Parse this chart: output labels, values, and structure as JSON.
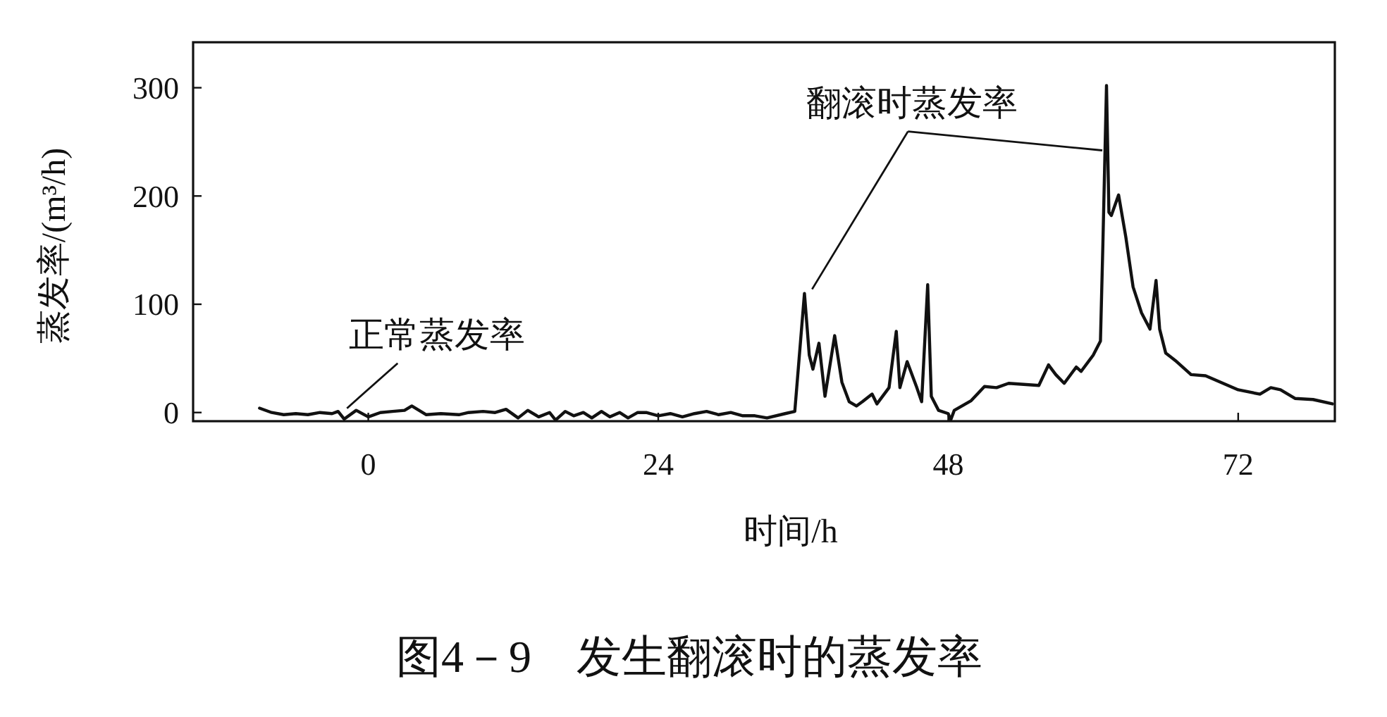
{
  "chart_data": {
    "type": "line",
    "title": "图4－9　发生翻滚时的蒸发率",
    "xlabel": "时间/h",
    "ylabel": "蒸发率/(m³/h)",
    "xlim": [
      -14.5,
      80
    ],
    "ylim": [
      -8,
      342
    ],
    "xticks": [
      0,
      24,
      48,
      72
    ],
    "yticks": [
      0,
      100,
      200,
      300
    ],
    "line_style": "solid",
    "series": [
      {
        "color": "#111111",
        "x": [
          -9,
          -8,
          -7,
          -6,
          -5,
          -4,
          -3,
          -2.5,
          -2,
          -1,
          0,
          1,
          2,
          3,
          3.6,
          4.8,
          6,
          7.5,
          8.3,
          9.5,
          10.5,
          11.4,
          12.4,
          13.2,
          14.1,
          15,
          15.5,
          16.3,
          17,
          17.8,
          18.5,
          19.3,
          20,
          20.8,
          21.5,
          22.3,
          23,
          24,
          25,
          26,
          27,
          28,
          29,
          30,
          31,
          32,
          33,
          34.5,
          35.3,
          36.1,
          36.5,
          36.8,
          37.3,
          37.8,
          38.6,
          39.2,
          39.8,
          40.4,
          40.9,
          41.7,
          42.1,
          43.1,
          43.7,
          44,
          44.6,
          45.4,
          45.8,
          46.3,
          46.6,
          47.2,
          48,
          48.2,
          48.5,
          49.9,
          51,
          52,
          53,
          55.5,
          56.3,
          56.9,
          57.6,
          58.6,
          59,
          60,
          60.6,
          60.8,
          61.1,
          61.3,
          61.5,
          62.1,
          62.7,
          63.3,
          64,
          64.7,
          65.2,
          65.5,
          66,
          66.8,
          68.1,
          69.3,
          72,
          73.8,
          74.7,
          75.5,
          76.7,
          78.2,
          79.8
        ],
        "values": [
          4,
          0,
          -2,
          -1,
          -2,
          0,
          -1,
          1,
          -6,
          2,
          -4,
          0,
          1,
          2,
          6,
          -2,
          -1,
          -2,
          0,
          1,
          0,
          3,
          -5,
          2,
          -4,
          0,
          -7,
          1,
          -3,
          0,
          -5,
          1,
          -4,
          0,
          -5,
          0,
          0,
          -3,
          -1,
          -4,
          -1,
          1,
          -2,
          0,
          -3,
          -3,
          -5,
          -1,
          1,
          110,
          53,
          40,
          64,
          15,
          71,
          28,
          10,
          6,
          10,
          17,
          8,
          23,
          75,
          23,
          47,
          23,
          10,
          118,
          15,
          2,
          -1,
          -7,
          2,
          11,
          24,
          23,
          27,
          25,
          44,
          35,
          27,
          42,
          38,
          53,
          66,
          155,
          302,
          185,
          182,
          201,
          162,
          116,
          92,
          77,
          122,
          77,
          55,
          48,
          35,
          34,
          21,
          17,
          23,
          21,
          13,
          12,
          8
        ]
      }
    ],
    "annotations": [
      {
        "text": "正常蒸发率",
        "x": -2,
        "y": 0
      },
      {
        "text": "翻滚时蒸发率",
        "x": 36.5,
        "y": 110
      }
    ]
  }
}
